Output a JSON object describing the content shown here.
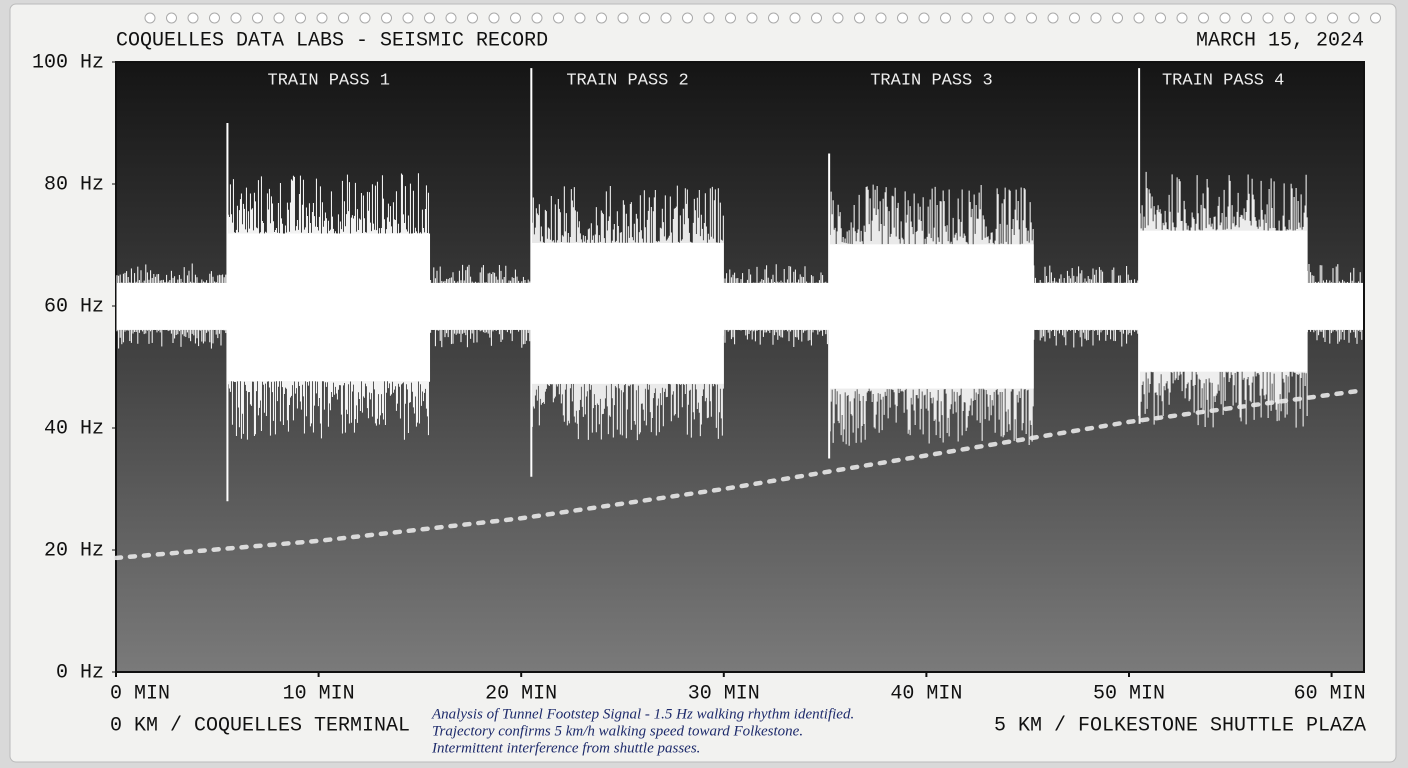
{
  "chart_data": {
    "type": "line",
    "title": "COQUELLES DATA LABS - SEISMIC RECORD",
    "date": "MARCH 15, 2024",
    "x_start_label": "0 KM / COQUELLES TERMINAL",
    "x_end_label": "5 KM / FOLKESTONE SHUTTLE PLAZA",
    "note": [
      "Analysis of Tunnel Footstep Signal - 1.5 Hz walking rhythm identified.",
      "Trajectory confirms 5 km/h walking speed toward Folkestone.",
      "Intermittent interference from shuttle passes."
    ],
    "xlim": [
      0,
      61.6
    ],
    "ylim": [
      0,
      100
    ],
    "xticks": [
      {
        "value": 0,
        "label": "0 MIN"
      },
      {
        "value": 10,
        "label": "10 MIN"
      },
      {
        "value": 20,
        "label": "20 MIN"
      },
      {
        "value": 30,
        "label": "30 MIN"
      },
      {
        "value": 40,
        "label": "40 MIN"
      },
      {
        "value": 50,
        "label": "50 MIN"
      },
      {
        "value": 60,
        "label": "60 MIN"
      }
    ],
    "yticks": [
      {
        "value": 0,
        "label": "0 Hz"
      },
      {
        "value": 20,
        "label": "20 Hz"
      },
      {
        "value": 40,
        "label": "40 Hz"
      },
      {
        "value": 60,
        "label": "60 Hz"
      },
      {
        "value": 80,
        "label": "80 Hz"
      },
      {
        "value": 100,
        "label": "100 Hz"
      }
    ],
    "x": [
      0,
      10,
      20,
      30,
      40,
      50,
      61.6
    ],
    "series": [
      {
        "color": "#e8e8e8",
        "values": [
          18.7,
          21.5,
          25.2,
          30,
          35.5,
          41,
          46.2
        ]
      }
    ],
    "baseline": {
      "low": 53,
      "high": 67
    },
    "passes": [
      {
        "label": "TRAIN PASS 1",
        "start": 5.5,
        "end": 15.5,
        "low": 38,
        "high": 82,
        "spike": [
          28,
          90
        ]
      },
      {
        "label": "TRAIN PASS 2",
        "start": 20.5,
        "end": 30,
        "low": 38,
        "high": 80,
        "spike": [
          32,
          99
        ]
      },
      {
        "label": "TRAIN PASS 3",
        "start": 35.2,
        "end": 45.3,
        "low": 37,
        "high": 80,
        "spike": [
          35,
          85
        ]
      },
      {
        "label": "TRAIN PASS 4",
        "start": 50.5,
        "end": 58.8,
        "low": 40,
        "high": 82,
        "spike": [
          42,
          99
        ]
      }
    ]
  }
}
